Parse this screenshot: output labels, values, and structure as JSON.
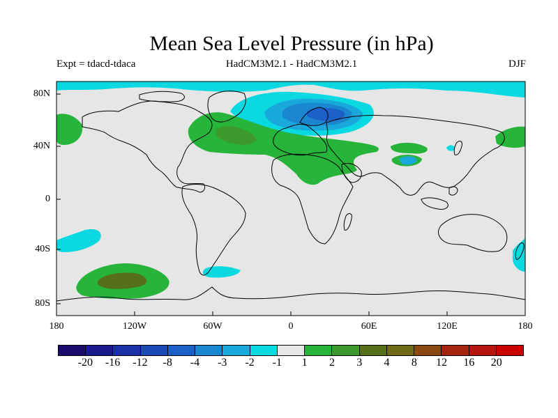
{
  "title": "Mean Sea Level Pressure (in hPa)",
  "subtitle_left": "Expt = tdacd-tdaca",
  "subtitle_center": "HadCM3M2.1 - HadCM3M2.1",
  "subtitle_right": "DJF",
  "lat_labels": [
    "80N",
    "40N",
    "0",
    "40S",
    "80S"
  ],
  "lon_labels": [
    "180",
    "120W",
    "60W",
    "0",
    "60E",
    "120E",
    "180"
  ],
  "colorbar": {
    "labels": [
      "-20",
      "-16",
      "-12",
      "-8",
      "-4",
      "-3",
      "-2",
      "-1",
      "1",
      "2",
      "3",
      "4",
      "8",
      "12",
      "16",
      "20"
    ],
    "colors": [
      "#1a0a6b",
      "#1a1a8c",
      "#1a30a8",
      "#1a48b8",
      "#1a60c8",
      "#1b86d0",
      "#18a8dc",
      "#0ad9e2",
      "#e6e6e6",
      "#26b43a",
      "#3d9a2a",
      "#566f19",
      "#6e6a1a",
      "#8a4a0f",
      "#a3240f",
      "#b8140f",
      "#c80000"
    ]
  },
  "map_colors": {
    "ocean": "#e6e6e6",
    "coast": "#000000",
    "cyan": "#0ad9e2",
    "light_blue": "#18a8dc",
    "mid_blue": "#1b86d0",
    "dark_blue": "#1a60c8",
    "green": "#26b43a",
    "dark_green": "#3d9a2a",
    "olive": "#566f19"
  }
}
